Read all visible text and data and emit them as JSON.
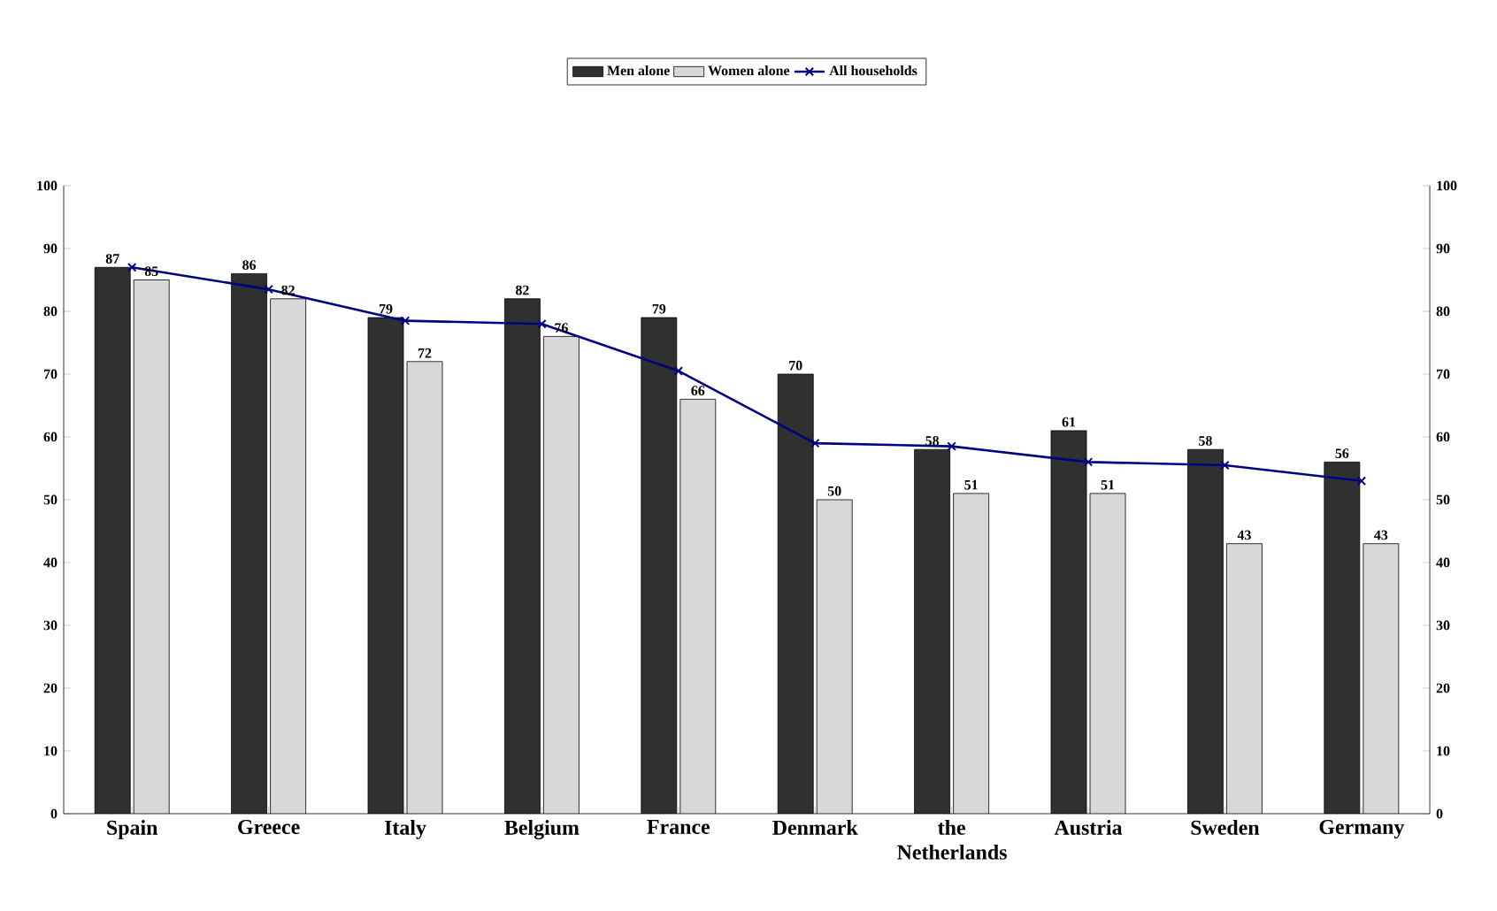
{
  "chart_data": {
    "type": "bar",
    "categories": [
      "Spain",
      "Greece",
      "Italy",
      "Belgium",
      "France",
      "Denmark",
      "the Netherlands",
      "Austria",
      "Sweden",
      "Germany"
    ],
    "series": [
      {
        "name": "Men alone",
        "color": "#303030",
        "values": [
          87,
          86,
          79,
          82,
          79,
          70,
          58,
          61,
          58,
          56
        ],
        "value_labels": [
          "87",
          "86",
          "79",
          "82",
          "79",
          "70",
          "58",
          "61",
          "58",
          "56"
        ]
      },
      {
        "name": "Women alone",
        "color": "#d8d8d8",
        "values": [
          85,
          82,
          72,
          76,
          66,
          50,
          51,
          51,
          43,
          43
        ],
        "value_labels": [
          "85",
          "82",
          "72",
          "76",
          "66",
          "50",
          "51",
          "51",
          "43",
          "43"
        ]
      },
      {
        "name": "All households",
        "type": "line",
        "color": "#000080",
        "marker": "cross",
        "values": [
          87,
          83.5,
          78.5,
          78,
          70.5,
          59,
          58.5,
          56,
          55.5,
          53
        ]
      }
    ],
    "ylim": [
      0,
      100
    ],
    "yticks": [
      0,
      10,
      20,
      30,
      40,
      50,
      60,
      70,
      80,
      90,
      100
    ],
    "y2lim": [
      0,
      100
    ],
    "y2ticks": [
      0,
      10,
      20,
      30,
      40,
      50,
      60,
      70,
      80,
      90,
      100
    ],
    "legend": "top"
  }
}
